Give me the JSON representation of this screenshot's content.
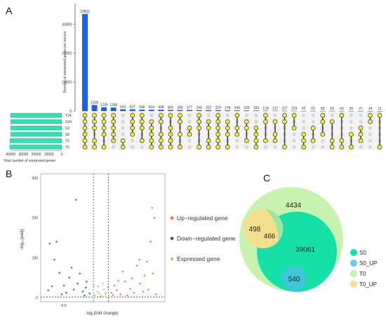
{
  "panels": {
    "a": "A",
    "b": "B",
    "c": "C"
  },
  "chart_data": [
    {
      "type": "bar",
      "subtype": "upset",
      "ylabel": "Number of expressed genes per source",
      "xlabel_sets": "Total number of expressed genes",
      "yticks": [
        "0",
        "10000",
        "20000",
        "30000"
      ],
      "ylim": [
        0,
        36000
      ],
      "set_ticks": [
        "40000",
        "30000",
        "20000",
        "10000",
        "0"
      ],
      "sets": [
        "T24",
        "S24",
        "S3",
        "S0",
        "T3",
        "T0"
      ],
      "set_sizes": [
        40000,
        40000,
        40000,
        40000,
        40500,
        40600
      ],
      "values": [
        33602,
        2108,
        1335,
        1238,
        643,
        627,
        508,
        504,
        498,
        406,
        396,
        377,
        344,
        332,
        329,
        278,
        249,
        209,
        193,
        124,
        122,
        107,
        104,
        63,
        63,
        55,
        52,
        43,
        35,
        27,
        14,
        11
      ],
      "labels": [
        "33602",
        "2108",
        "1335",
        "1238",
        "643",
        "627",
        "508",
        "504",
        "498",
        "406",
        "396",
        "377",
        "344",
        "332",
        "329",
        "278",
        "249",
        "209",
        "193",
        "124",
        "122",
        "107",
        "104",
        "63",
        "63",
        "55",
        "52",
        "43",
        "35",
        "27",
        "14",
        "11"
      ],
      "matrix": [
        [
          0,
          1,
          2,
          3,
          4,
          5
        ],
        [
          0,
          1,
          2,
          4,
          5
        ],
        [
          0,
          1,
          2,
          3,
          5
        ],
        [
          0,
          1,
          2,
          3,
          4
        ],
        [
          4,
          5
        ],
        [
          0,
          1,
          2,
          3
        ],
        [
          0,
          1,
          2,
          4
        ],
        [
          1,
          2,
          3,
          4,
          5
        ],
        [
          0,
          1,
          3,
          4,
          5
        ],
        [
          0,
          2,
          3,
          4,
          5
        ],
        [
          0,
          1,
          3,
          5
        ],
        [
          2,
          3
        ],
        [
          0,
          1,
          2,
          5
        ],
        [
          1,
          2,
          4,
          5
        ],
        [
          0,
          1,
          2,
          3,
          4,
          5
        ],
        [
          1,
          2,
          3,
          5
        ],
        [
          0,
          2,
          3
        ],
        [
          1,
          2,
          4
        ],
        [
          2,
          3,
          4,
          5
        ],
        [
          0,
          1,
          4
        ],
        [
          1,
          3,
          4
        ],
        [
          0,
          1,
          5
        ],
        [
          0,
          2
        ],
        [
          3,
          4,
          5
        ],
        [
          2,
          4
        ],
        [
          0,
          1,
          3
        ],
        [
          1,
          4,
          5
        ],
        [
          0,
          4,
          5
        ],
        [
          3,
          5
        ],
        [
          2,
          3,
          4
        ],
        [
          0,
          1
        ],
        [
          0,
          5
        ]
      ],
      "colors": {
        "bar": "#1f5fe6",
        "set_bar": "#35e0b4",
        "dot": "#f2ee3a",
        "dot_edge": "#333333",
        "inactive": "#d6d6d6"
      }
    },
    {
      "type": "scatter",
      "subtype": "volcano",
      "xlabel": "log₂(fold change)",
      "ylabel": "−log₁₀(padj)",
      "yticks": [
        "0",
        "100",
        "200",
        "300"
      ],
      "xticks": [
        "-5.0"
      ],
      "ylim": [
        0,
        300
      ],
      "thresholds_x": [
        -1,
        1
      ],
      "threshold_y": 1.3,
      "series": [
        {
          "name": "Up−regulated gene",
          "color": "#f26b47",
          "points": [
            [
              1.4,
              12
            ],
            [
              1.8,
              30
            ],
            [
              2.1,
              18
            ],
            [
              2.6,
              8
            ],
            [
              3.2,
              40
            ],
            [
              3.9,
              22
            ],
            [
              4.4,
              12
            ],
            [
              5.2,
              35
            ],
            [
              5.8,
              55
            ],
            [
              6.3,
              20
            ],
            [
              2.9,
              65
            ],
            [
              4.8,
              80
            ],
            [
              6.1,
              90
            ],
            [
              6.6,
              140
            ],
            [
              7.1,
              200
            ],
            [
              6.8,
              225
            ],
            [
              5.1,
              95
            ],
            [
              3.5,
              5
            ],
            [
              4.1,
              48
            ],
            [
              1.6,
              6
            ],
            [
              2.3,
              42
            ],
            [
              5.6,
              15
            ],
            [
              7.3,
              8
            ],
            [
              6.9,
              60
            ]
          ]
        },
        {
          "name": "Down−regulated gene",
          "color": "#1f7a3a",
          "points": [
            [
              -1.5,
              10
            ],
            [
              -2.0,
              25
            ],
            [
              -2.4,
              15
            ],
            [
              -3.1,
              35
            ],
            [
              -3.6,
              20
            ],
            [
              -4.2,
              50
            ],
            [
              -4.9,
              30
            ],
            [
              -5.5,
              62
            ],
            [
              -6.2,
              95
            ],
            [
              -6.8,
              135
            ],
            [
              -5.9,
              140
            ],
            [
              -3.3,
              245
            ],
            [
              -2.8,
              60
            ],
            [
              -4.6,
              12
            ],
            [
              -1.9,
              40
            ],
            [
              -5.2,
              8
            ],
            [
              -6.5,
              28
            ],
            [
              -3.9,
              75
            ],
            [
              -2.2,
              5
            ],
            [
              -7.0,
              18
            ]
          ]
        },
        {
          "name": "Expressed gene",
          "color": "#c8c27a",
          "points": [
            [
              -0.8,
              6
            ],
            [
              -0.5,
              15
            ],
            [
              -0.2,
              10
            ],
            [
              0.1,
              4
            ],
            [
              0.4,
              20
            ],
            [
              0.7,
              12
            ],
            [
              0.9,
              25
            ],
            [
              -0.9,
              30
            ],
            [
              0.3,
              35
            ],
            [
              -0.4,
              28
            ],
            [
              0.6,
              8
            ],
            [
              -0.1,
              2
            ]
          ]
        }
      ],
      "legend": [
        "Up−regulated gene",
        "Down−regulated gene",
        "Expressed gene"
      ]
    },
    {
      "type": "venn",
      "numbers": [
        "4434",
        "498",
        "466",
        "39061",
        "540"
      ],
      "legend": [
        {
          "name": "S0",
          "color": "#14e0a8"
        },
        {
          "name": "S0_UP",
          "color": "#6ec9e8"
        },
        {
          "name": "T0",
          "color": "#c8f2b0"
        },
        {
          "name": "T0_UP",
          "color": "#f4df8e"
        }
      ]
    }
  ]
}
